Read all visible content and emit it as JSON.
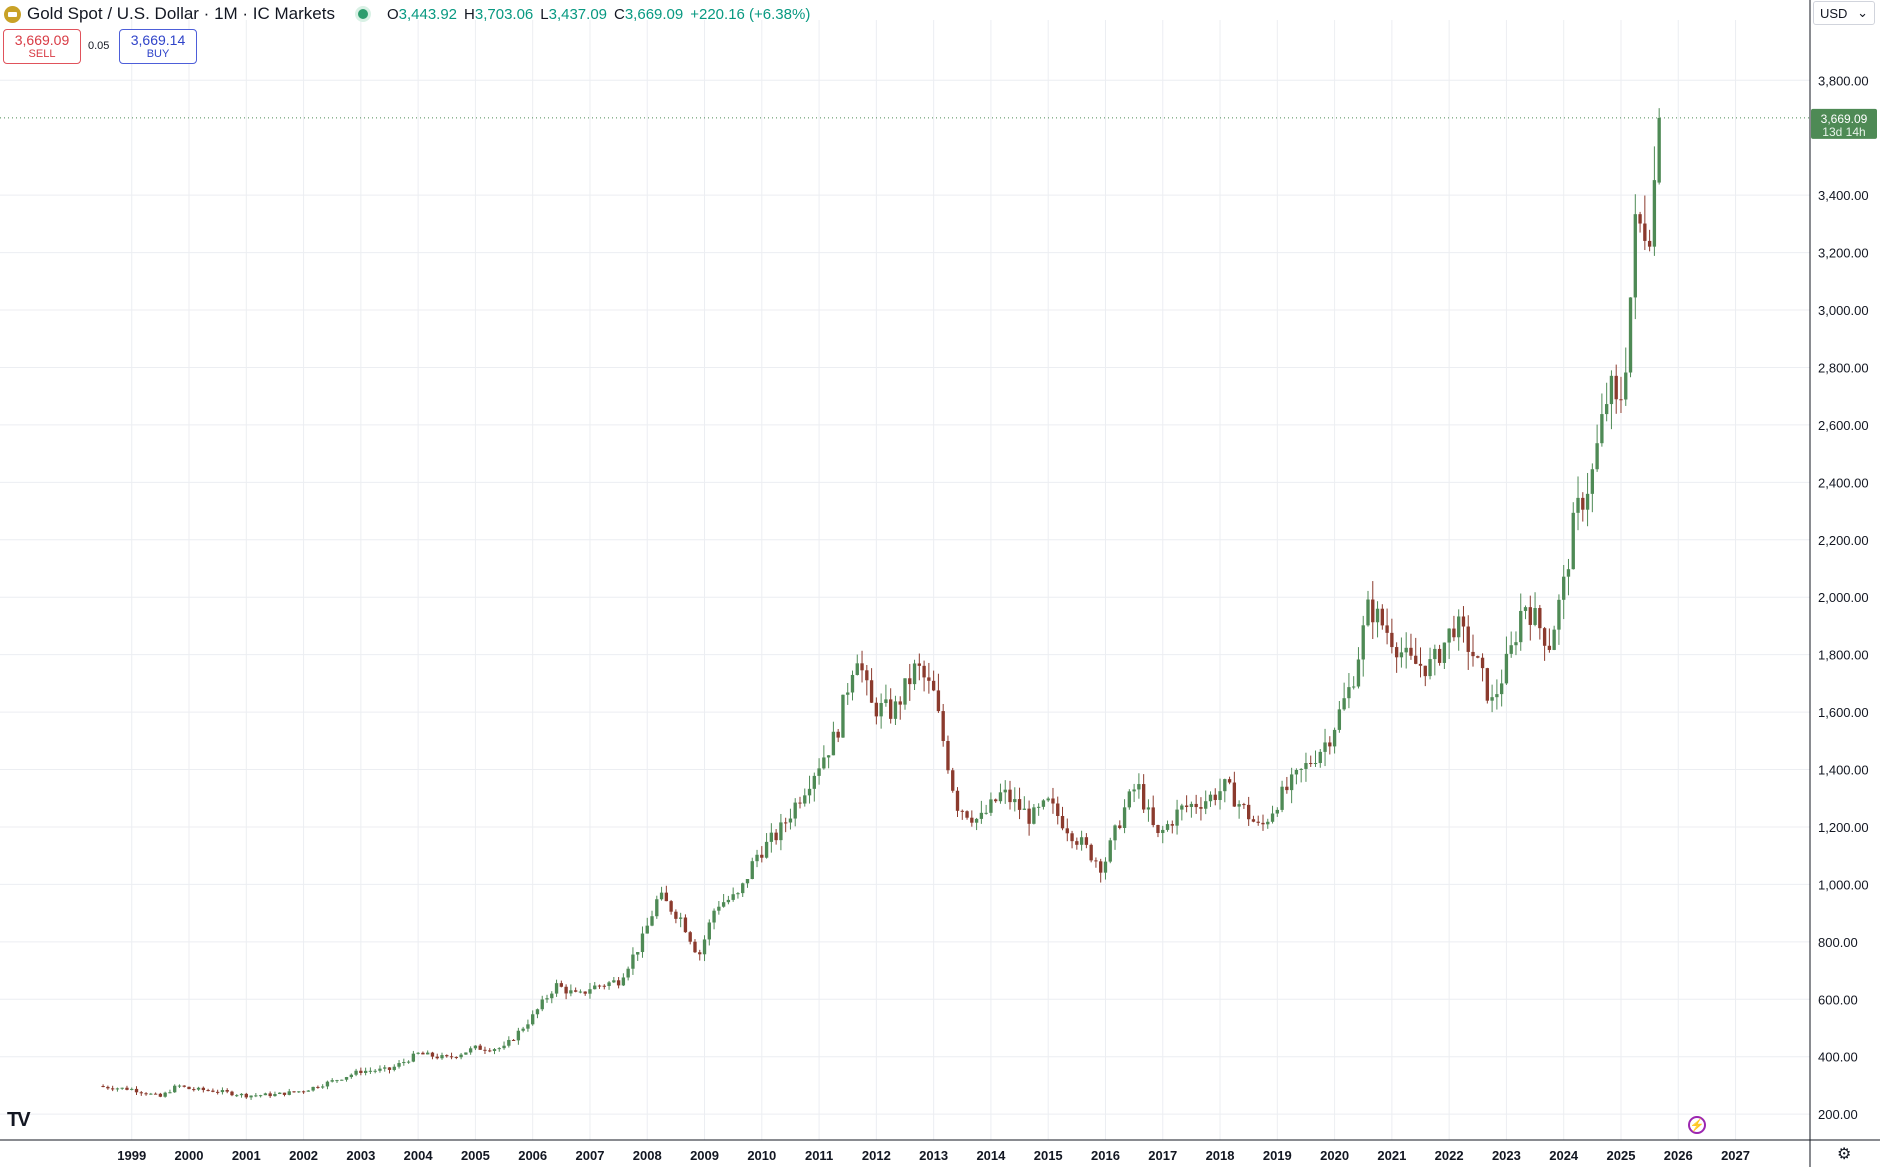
{
  "header": {
    "title": "Gold Spot / U.S. Dollar · 1M · IC Markets",
    "ohlc": {
      "open_key": "O",
      "open": "3,443.92",
      "high_key": "H",
      "high": "3,703.06",
      "low_key": "L",
      "low": "3,437.09",
      "close_key": "C",
      "close": "3,669.09",
      "change": "+220.16 (+6.38%)"
    }
  },
  "trade": {
    "sell_price": "3,669.09",
    "sell_label": "SELL",
    "spread": "0.05",
    "buy_price": "3,669.14",
    "buy_label": "BUY"
  },
  "currency_selector": "USD",
  "price_tag": {
    "value": "3,669.09",
    "countdown": "13d 14h"
  },
  "colors": {
    "up": "#4e8a55",
    "down": "#8b3a2d",
    "grid": "#eceef2",
    "price_tag": "#4e8a55"
  },
  "icons": {
    "logo": "gold-bar-icon",
    "status": "market-open-dot-icon",
    "brand": "tradingview-logo-icon",
    "bolt": "lightning-icon",
    "settings": "gear-icon",
    "dropdown": "chevron-down-icon"
  },
  "chart_data": {
    "type": "candlestick",
    "interval": "1M",
    "y_ticks": [
      "200.00",
      "400.00",
      "600.00",
      "800.00",
      "1,000.00",
      "1,200.00",
      "1,400.00",
      "1,600.00",
      "1,800.00",
      "2,000.00",
      "2,200.00",
      "2,400.00",
      "2,600.00",
      "2,800.00",
      "3,000.00",
      "3,200.00",
      "3,400.00",
      "3,800.00"
    ],
    "x_ticks": [
      "1999",
      "2000",
      "2001",
      "2002",
      "2003",
      "2004",
      "2005",
      "2006",
      "2007",
      "2008",
      "2009",
      "2010",
      "2011",
      "2012",
      "2013",
      "2014",
      "2015",
      "2016",
      "2017",
      "2018",
      "2019",
      "2020",
      "2021",
      "2022",
      "2023",
      "2024",
      "2025",
      "2026",
      "2027"
    ],
    "ylim": [
      110,
      4010
    ],
    "xlim": [
      1996.7,
      2028.3
    ],
    "start_month": "1998-07",
    "last_price": 3669.09,
    "closes_yearly": [
      {
        "year": 1998.5,
        "close": 295
      },
      {
        "year": 1999.0,
        "close": 287
      },
      {
        "year": 1999.5,
        "close": 260
      },
      {
        "year": 1999.8,
        "close": 300
      },
      {
        "year": 2000.0,
        "close": 288
      },
      {
        "year": 2000.5,
        "close": 280
      },
      {
        "year": 2001.0,
        "close": 265
      },
      {
        "year": 2001.5,
        "close": 268
      },
      {
        "year": 2002.0,
        "close": 282
      },
      {
        "year": 2002.5,
        "close": 315
      },
      {
        "year": 2003.0,
        "close": 350
      },
      {
        "year": 2003.5,
        "close": 355
      },
      {
        "year": 2004.0,
        "close": 410
      },
      {
        "year": 2004.5,
        "close": 395
      },
      {
        "year": 2005.0,
        "close": 430
      },
      {
        "year": 2005.5,
        "close": 430
      },
      {
        "year": 2006.0,
        "close": 540
      },
      {
        "year": 2006.4,
        "close": 650
      },
      {
        "year": 2006.8,
        "close": 610
      },
      {
        "year": 2007.0,
        "close": 640
      },
      {
        "year": 2007.5,
        "close": 665
      },
      {
        "year": 2007.9,
        "close": 800
      },
      {
        "year": 2008.2,
        "close": 960
      },
      {
        "year": 2008.6,
        "close": 880
      },
      {
        "year": 2008.9,
        "close": 750
      },
      {
        "year": 2009.2,
        "close": 930
      },
      {
        "year": 2009.6,
        "close": 960
      },
      {
        "year": 2009.9,
        "close": 1100
      },
      {
        "year": 2010.3,
        "close": 1180
      },
      {
        "year": 2010.9,
        "close": 1390
      },
      {
        "year": 2011.3,
        "close": 1520
      },
      {
        "year": 2011.65,
        "close": 1820
      },
      {
        "year": 2011.9,
        "close": 1620
      },
      {
        "year": 2012.3,
        "close": 1600
      },
      {
        "year": 2012.7,
        "close": 1760
      },
      {
        "year": 2013.0,
        "close": 1660
      },
      {
        "year": 2013.4,
        "close": 1280
      },
      {
        "year": 2013.8,
        "close": 1220
      },
      {
        "year": 2014.2,
        "close": 1320
      },
      {
        "year": 2014.7,
        "close": 1230
      },
      {
        "year": 2015.0,
        "close": 1280
      },
      {
        "year": 2015.5,
        "close": 1160
      },
      {
        "year": 2015.95,
        "close": 1060
      },
      {
        "year": 2016.3,
        "close": 1250
      },
      {
        "year": 2016.55,
        "close": 1350
      },
      {
        "year": 2016.9,
        "close": 1160
      },
      {
        "year": 2017.3,
        "close": 1260
      },
      {
        "year": 2017.8,
        "close": 1300
      },
      {
        "year": 2018.1,
        "close": 1340
      },
      {
        "year": 2018.7,
        "close": 1190
      },
      {
        "year": 2019.0,
        "close": 1290
      },
      {
        "year": 2019.5,
        "close": 1410
      },
      {
        "year": 2019.9,
        "close": 1510
      },
      {
        "year": 2020.3,
        "close": 1700
      },
      {
        "year": 2020.6,
        "close": 1970
      },
      {
        "year": 2021.0,
        "close": 1860
      },
      {
        "year": 2021.3,
        "close": 1770
      },
      {
        "year": 2021.7,
        "close": 1760
      },
      {
        "year": 2022.1,
        "close": 1910
      },
      {
        "year": 2022.4,
        "close": 1810
      },
      {
        "year": 2022.75,
        "close": 1630
      },
      {
        "year": 2023.1,
        "close": 1820
      },
      {
        "year": 2023.3,
        "close": 1990
      },
      {
        "year": 2023.75,
        "close": 1840
      },
      {
        "year": 2024.0,
        "close": 2040
      },
      {
        "year": 2024.2,
        "close": 2280
      },
      {
        "year": 2024.5,
        "close": 2430
      },
      {
        "year": 2024.8,
        "close": 2740
      },
      {
        "year": 2024.95,
        "close": 2630
      },
      {
        "year": 2025.1,
        "close": 2860
      },
      {
        "year": 2025.25,
        "close": 3280
      },
      {
        "year": 2025.5,
        "close": 3300
      },
      {
        "year": 2025.58,
        "close": 3440
      },
      {
        "year": 2025.67,
        "close": 3669
      }
    ]
  }
}
